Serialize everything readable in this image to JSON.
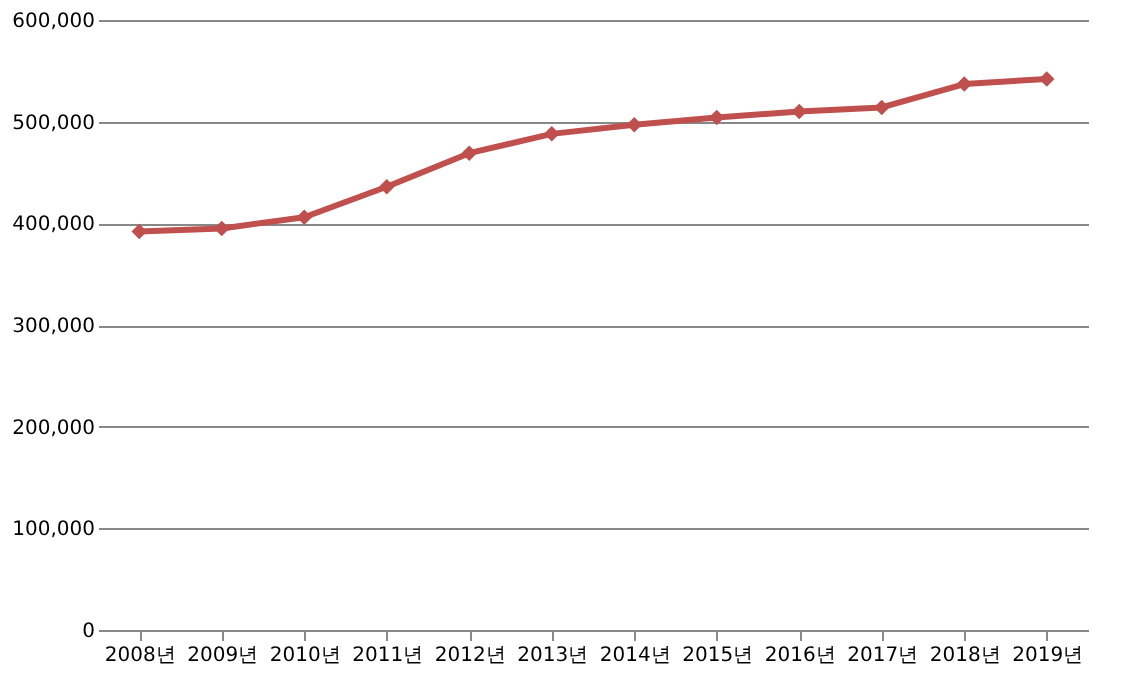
{
  "chart_data": {
    "type": "line",
    "categories": [
      "2008년",
      "2009년",
      "2010년",
      "2011년",
      "2012년",
      "2013년",
      "2014년",
      "2015년",
      "2016년",
      "2017년",
      "2018년",
      "2019년"
    ],
    "series": [
      {
        "color": "#c0504d",
        "values": [
          392000,
          395000,
          406000,
          436000,
          469000,
          488000,
          497000,
          504000,
          510000,
          514000,
          537000,
          542000
        ]
      }
    ],
    "ylim": [
      0,
      600000
    ],
    "yticks": [
      0,
      {
        "value": 100000,
        "label": "100,000"
      },
      {
        "value": 200000,
        "label": "200,000"
      },
      {
        "value": 300000,
        "label": "300,000"
      },
      {
        "value": 400000,
        "label": "400,000"
      },
      {
        "value": 500000,
        "label": "500,000"
      },
      {
        "value": 600000,
        "label": "600,000"
      }
    ],
    "grid": "y",
    "marker": "diamond",
    "line_style": "solid"
  }
}
